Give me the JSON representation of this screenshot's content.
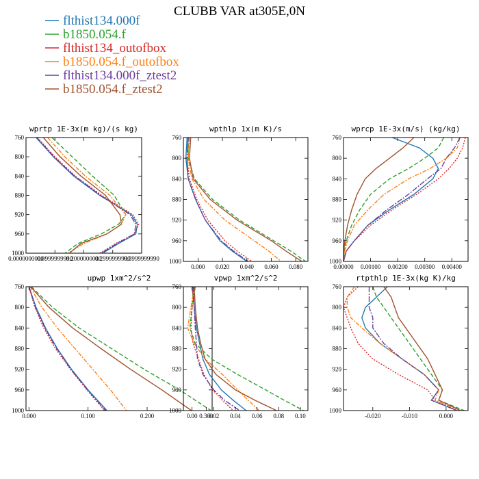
{
  "figure": {
    "title": "CLUBB VAR at305E,0N"
  },
  "colors": {
    "flthist134.000f": "#1f77b4",
    "b1850.054.f": "#2ca02c",
    "flthist134_outofbox": "#d62728",
    "b1850.054.f_outofbox": "#ff7f0e",
    "flthist134.000f_ztest2": "#6a3d9a",
    "b1850.054.f_ztest2": "#a0522d"
  },
  "legend": [
    {
      "name": "flthist134.000f",
      "color": "#1f77b4",
      "dash": ""
    },
    {
      "name": "b1850.054.f",
      "color": "#2ca02c",
      "dash": "6,3"
    },
    {
      "name": "flthist134_outofbox",
      "color": "#d62728",
      "dash": "2,2"
    },
    {
      "name": "b1850.054.f_outofbox",
      "color": "#ff7f0e",
      "dash": "6,2,2,2"
    },
    {
      "name": "flthist134.000f_ztest2",
      "color": "#6a3d9a",
      "dash": "8,2,2,2"
    },
    {
      "name": "b1850.054.f_ztest2",
      "color": "#a0522d",
      "dash": ""
    }
  ],
  "chart_data": [
    {
      "type": "line",
      "title": "wprtp  1E-3x(m kg)/(s kg)",
      "xlim": [
        0,
        0.4
      ],
      "xticks": [
        0,
        0.1,
        0.2,
        0.3,
        0.4
      ],
      "xticklabels": [
        "0.0000000000",
        "0.0999999990",
        "0.2000000000",
        "0.2999999990",
        "0.3999999990"
      ],
      "ylim": [
        760,
        1000
      ],
      "yticks": [
        760,
        800,
        840,
        880,
        920,
        960,
        1000
      ],
      "y": [
        760,
        800,
        840,
        880,
        920,
        940,
        960,
        980,
        1000
      ],
      "series": [
        {
          "name": "flthist134.000f",
          "x": [
            0.035,
            0.095,
            0.165,
            0.255,
            0.365,
            0.385,
            0.38,
            0.32,
            0.265
          ]
        },
        {
          "name": "b1850.054.f",
          "x": [
            0.09,
            0.16,
            0.23,
            0.305,
            0.345,
            0.32,
            0.26,
            0.18,
            0.135
          ]
        },
        {
          "name": "flthist134_outofbox",
          "x": [
            0.04,
            0.1,
            0.17,
            0.262,
            0.37,
            0.39,
            0.375,
            0.31,
            0.255
          ]
        },
        {
          "name": "b1850.054.f_outofbox",
          "x": [
            0.075,
            0.135,
            0.205,
            0.29,
            0.345,
            0.33,
            0.28,
            0.2,
            0.145
          ]
        },
        {
          "name": "flthist134.000f_ztest2",
          "x": [
            0.037,
            0.097,
            0.168,
            0.258,
            0.36,
            0.38,
            0.375,
            0.315,
            0.26
          ]
        },
        {
          "name": "b1850.054.f_ztest2",
          "x": [
            0.06,
            0.118,
            0.19,
            0.275,
            0.325,
            0.33,
            0.28,
            0.19,
            0.15
          ]
        }
      ]
    },
    {
      "type": "line",
      "title": "wpthlp  1x(m K)/s",
      "xlim": [
        -0.012,
        0.09
      ],
      "xticks": [
        0,
        0.02,
        0.04,
        0.06,
        0.08
      ],
      "xticklabels": [
        "0.000",
        "0.020",
        "0.040",
        "0.060",
        "0.080"
      ],
      "ylim": [
        760,
        1000
      ],
      "yticks": [
        760,
        800,
        840,
        880,
        920,
        960,
        1000
      ],
      "y": [
        760,
        800,
        840,
        880,
        920,
        960,
        980,
        1000
      ],
      "series": [
        {
          "name": "flthist134.000f",
          "x": [
            -0.009,
            -0.01,
            -0.008,
            -0.002,
            0.006,
            0.018,
            0.028,
            0.04
          ]
        },
        {
          "name": "b1850.054.f",
          "x": [
            -0.008,
            -0.008,
            -0.003,
            0.012,
            0.034,
            0.062,
            0.076,
            0.088
          ]
        },
        {
          "name": "flthist134_outofbox",
          "x": [
            -0.008,
            -0.009,
            -0.007,
            -0.001,
            0.008,
            0.022,
            0.032,
            0.044
          ]
        },
        {
          "name": "b1850.054.f_outofbox",
          "x": [
            -0.007,
            -0.008,
            -0.005,
            0.005,
            0.022,
            0.046,
            0.058,
            0.068
          ]
        },
        {
          "name": "flthist134.000f_ztest2",
          "x": [
            -0.008,
            -0.009,
            -0.008,
            -0.002,
            0.006,
            0.019,
            0.029,
            0.041
          ]
        },
        {
          "name": "b1850.054.f_ztest2",
          "x": [
            -0.006,
            -0.007,
            -0.004,
            0.01,
            0.032,
            0.06,
            0.072,
            0.085
          ]
        }
      ]
    },
    {
      "type": "line",
      "title": "wprcp  1E-3x(m/s) (kg/kg)",
      "xlim": [
        0,
        0.0046
      ],
      "xticks": [
        0,
        0.001,
        0.002,
        0.003,
        0.004
      ],
      "xticklabels": [
        "0.00000",
        "0.00100",
        "0.00200",
        "0.00300",
        "0.00400"
      ],
      "ylim": [
        760,
        1000
      ],
      "yticks": [
        760,
        800,
        840,
        880,
        920,
        960,
        1000
      ],
      "y": [
        760,
        780,
        800,
        820,
        840,
        870,
        900,
        930,
        960,
        980,
        1000
      ],
      "series": [
        {
          "name": "flthist134.000f",
          "x": [
            0.0018,
            0.0028,
            0.0033,
            0.0035,
            0.0033,
            0.0026,
            0.0017,
            0.0009,
            0.0004,
            0.0001,
            0.0
          ]
        },
        {
          "name": "b1850.054.f",
          "x": [
            0.0037,
            0.0035,
            0.003,
            0.0024,
            0.0017,
            0.001,
            0.0006,
            0.0003,
            0.0001,
            3e-05,
            0.0
          ]
        },
        {
          "name": "flthist134_outofbox",
          "x": [
            0.0045,
            0.0044,
            0.0042,
            0.0039,
            0.0035,
            0.0027,
            0.0018,
            0.001,
            0.0004,
            0.0001,
            0.0
          ]
        },
        {
          "name": "b1850.054.f_outofbox",
          "x": [
            0.0043,
            0.0042,
            0.0038,
            0.0032,
            0.0024,
            0.0015,
            0.0009,
            0.0004,
            0.00015,
            4e-05,
            0.0
          ]
        },
        {
          "name": "flthist134.000f_ztest2",
          "x": [
            0.0043,
            0.0041,
            0.0038,
            0.0036,
            0.0031,
            0.0024,
            0.0016,
            0.0009,
            0.0004,
            0.0001,
            0.0
          ]
        },
        {
          "name": "b1850.054.f_ztest2",
          "x": [
            0.0026,
            0.0022,
            0.0017,
            0.0012,
            0.0008,
            0.0005,
            0.0003,
            0.00015,
            5e-05,
            1e-05,
            0.0
          ]
        }
      ]
    },
    {
      "type": "line",
      "title": "upwp  1xm^2/s^2",
      "xlim": [
        -0.005,
        0.31
      ],
      "xticks": [
        0,
        0.1,
        0.2,
        0.3
      ],
      "xticklabels": [
        "0.000",
        "0.100",
        "0.200",
        "0.300"
      ],
      "ylim": [
        760,
        1000
      ],
      "yticks": [
        760,
        800,
        840,
        880,
        920,
        960,
        1000
      ],
      "y": [
        760,
        800,
        840,
        880,
        920,
        960,
        1000
      ],
      "series": [
        {
          "name": "flthist134.000f",
          "x": [
            0.0,
            0.012,
            0.028,
            0.048,
            0.072,
            0.1,
            0.132
          ]
        },
        {
          "name": "b1850.054.f",
          "x": [
            0.004,
            0.04,
            0.085,
            0.14,
            0.195,
            0.255,
            0.308
          ]
        },
        {
          "name": "flthist134_outofbox",
          "x": [
            0.0,
            0.01,
            0.025,
            0.045,
            0.07,
            0.098,
            0.128
          ]
        },
        {
          "name": "b1850.054.f_outofbox",
          "x": [
            0.002,
            0.022,
            0.048,
            0.078,
            0.108,
            0.138,
            0.165
          ]
        },
        {
          "name": "flthist134.000f_ztest2",
          "x": [
            0.0,
            0.011,
            0.027,
            0.047,
            0.071,
            0.099,
            0.13
          ]
        },
        {
          "name": "b1850.054.f_ztest2",
          "x": [
            0.003,
            0.034,
            0.074,
            0.122,
            0.172,
            0.225,
            0.275
          ]
        }
      ]
    },
    {
      "type": "line",
      "title": "vpwp  1xm^2/s^2",
      "xlim": [
        -0.008,
        0.107
      ],
      "xticks": [
        0,
        0.02,
        0.04,
        0.06,
        0.08,
        0.1
      ],
      "xticklabels": [
        "0.00",
        "0.02",
        "0.04",
        "0.06",
        "0.08",
        "0.10"
      ],
      "ylim": [
        760,
        1000
      ],
      "yticks": [
        760,
        800,
        840,
        880,
        920,
        960,
        1000
      ],
      "y": [
        760,
        800,
        840,
        870,
        900,
        930,
        960,
        980,
        1000
      ],
      "series": [
        {
          "name": "flthist134.000f",
          "x": [
            0.0,
            0.002,
            0.004,
            0.007,
            0.01,
            0.016,
            0.027,
            0.038,
            0.05
          ]
        },
        {
          "name": "b1850.054.f",
          "x": [
            0.003,
            0.0,
            -0.002,
            0.003,
            0.018,
            0.042,
            0.068,
            0.085,
            0.103
          ]
        },
        {
          "name": "flthist134_outofbox",
          "x": [
            0.001,
            0.0,
            -0.001,
            0.001,
            0.006,
            0.011,
            0.019,
            0.028,
            0.038
          ]
        },
        {
          "name": "b1850.054.f_outofbox",
          "x": [
            0.002,
            -0.001,
            -0.004,
            0.002,
            0.012,
            0.028,
            0.042,
            0.052,
            0.062
          ]
        },
        {
          "name": "flthist134.000f_ztest2",
          "x": [
            0.001,
            0.002,
            0.003,
            0.004,
            0.005,
            0.01,
            0.02,
            0.03,
            0.044
          ]
        },
        {
          "name": "b1850.054.f_ztest2",
          "x": [
            0.002,
            0.003,
            0.005,
            0.008,
            0.012,
            0.022,
            0.04,
            0.058,
            0.078
          ]
        }
      ]
    },
    {
      "type": "line",
      "title": "rtpthlp  1E-3x(kg K)/kg",
      "xlim": [
        -0.028,
        0.006
      ],
      "xticks": [
        -0.02,
        -0.01,
        0.0
      ],
      "xticklabels": [
        "-0.020",
        "-0.010",
        "0.000"
      ],
      "ylim": [
        760,
        1000
      ],
      "yticks": [
        760,
        800,
        840,
        880,
        920,
        960,
        1000
      ],
      "y": [
        760,
        780,
        800,
        820,
        840,
        870,
        900,
        930,
        960,
        980,
        1000
      ],
      "series": [
        {
          "name": "flthist134.000f",
          "x": [
            -0.016,
            -0.019,
            -0.022,
            -0.023,
            -0.022,
            -0.018,
            -0.012,
            -0.006,
            -0.002,
            -0.004,
            0.003
          ]
        },
        {
          "name": "b1850.054.f",
          "x": [
            -0.02,
            -0.019,
            -0.017,
            -0.015,
            -0.013,
            -0.01,
            -0.007,
            -0.004,
            -0.001,
            -0.002,
            0.005
          ]
        },
        {
          "name": "flthist134_outofbox",
          "x": [
            -0.024,
            -0.027,
            -0.028,
            -0.027,
            -0.026,
            -0.024,
            -0.02,
            -0.013,
            -0.005,
            -0.003,
            0.003
          ]
        },
        {
          "name": "b1850.054.f_outofbox",
          "x": [
            -0.025,
            -0.027,
            -0.027,
            -0.026,
            -0.023,
            -0.018,
            -0.012,
            -0.006,
            -0.002,
            -0.003,
            0.004
          ]
        },
        {
          "name": "flthist134.000f_ztest2",
          "x": [
            -0.021,
            -0.021,
            -0.021,
            -0.02,
            -0.02,
            -0.017,
            -0.012,
            -0.006,
            -0.002,
            -0.004,
            0.003
          ]
        },
        {
          "name": "b1850.054.f_ztest2",
          "x": [
            -0.017,
            -0.015,
            -0.014,
            -0.013,
            -0.011,
            -0.008,
            -0.005,
            -0.003,
            -0.001,
            -0.002,
            0.004
          ]
        }
      ]
    }
  ]
}
